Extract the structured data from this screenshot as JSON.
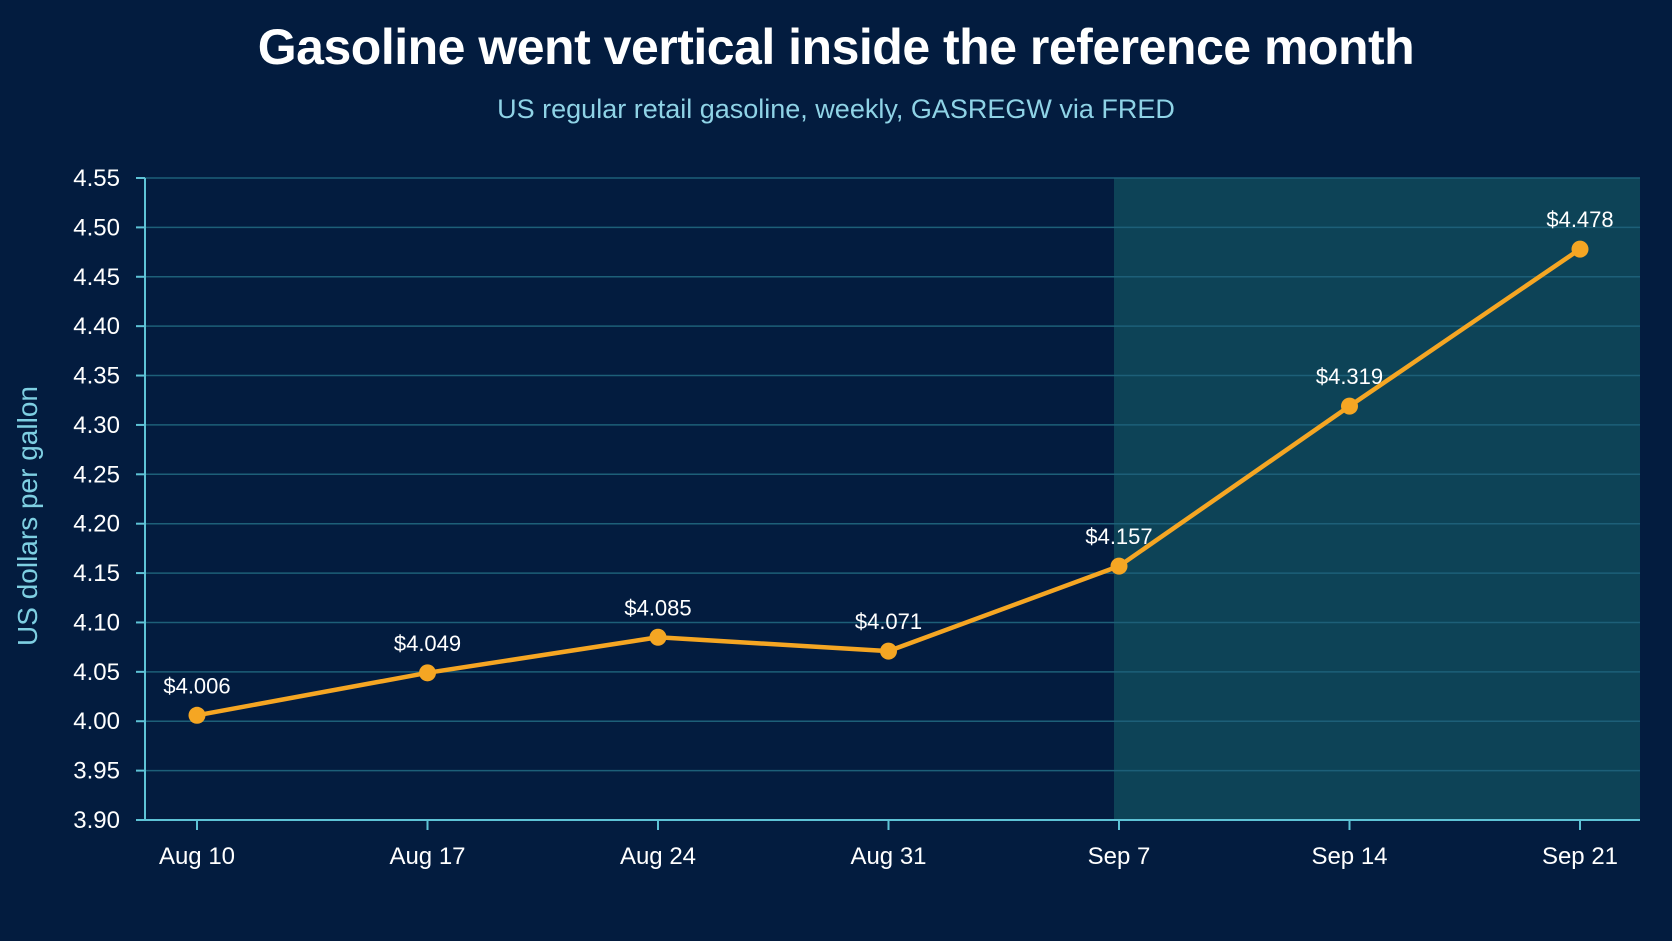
{
  "chart": {
    "title": "Gasoline went vertical inside the reference month",
    "subtitle": "US regular retail gasoline, weekly, GASREGW via FRED"
  },
  "colors": {
    "background": "#031c3f",
    "line": "#f5a623",
    "grid": "#1d5f78",
    "axis": "#5ec3d6",
    "highlight": "#0f4a5c",
    "axis_title": "#7ecfe2"
  },
  "chart_data": {
    "type": "line",
    "title": "Gasoline went vertical inside the reference month",
    "subtitle": "US regular retail gasoline, weekly, GASREGW via FRED",
    "xlabel": "",
    "ylabel": "US dollars per gallon",
    "categories": [
      "Aug 10",
      "Aug 17",
      "Aug 24",
      "Aug 31",
      "Sep 7",
      "Sep 14",
      "Sep 21"
    ],
    "series": [
      {
        "values": [
          4.006,
          4.049,
          4.085,
          4.071,
          4.157,
          4.319,
          4.478
        ]
      }
    ],
    "data_labels": [
      "$4.006",
      "$4.049",
      "$4.085",
      "$4.071",
      "$4.157",
      "$4.319",
      "$4.478"
    ],
    "ylim": [
      3.9,
      4.55
    ],
    "yticks": [
      "3.90",
      "3.95",
      "4.00",
      "4.05",
      "4.10",
      "4.15",
      "4.20",
      "4.25",
      "4.30",
      "4.35",
      "4.40",
      "4.45",
      "4.50",
      "4.55"
    ],
    "highlight_range": [
      "Sep 7",
      "Sep 21"
    ],
    "grid": true,
    "legend": "none"
  }
}
